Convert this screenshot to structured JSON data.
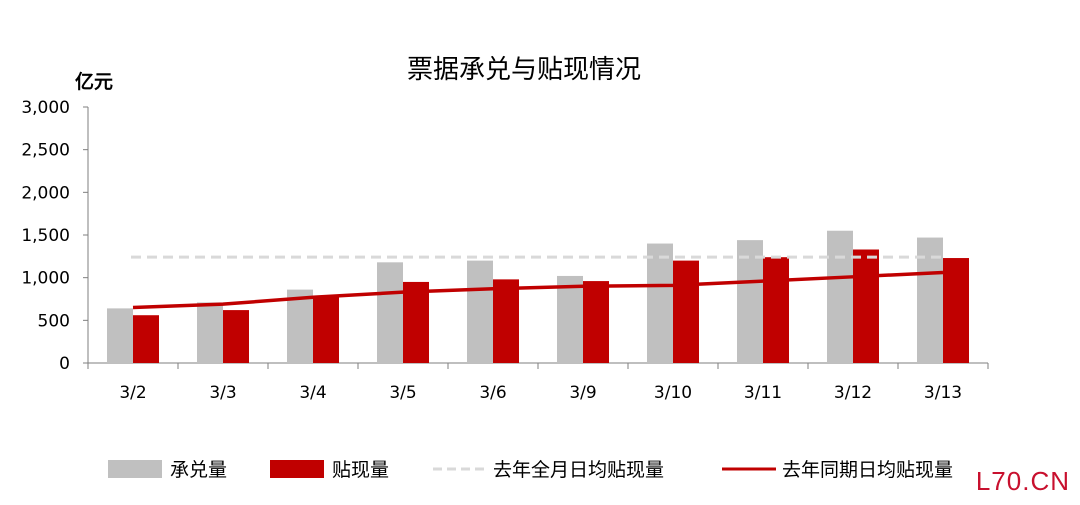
{
  "chart_data": {
    "type": "bar",
    "title": "票据承兑与贴现情况",
    "ylabel": "亿元",
    "xlabel": "",
    "categories": [
      "3/2",
      "3/3",
      "3/4",
      "3/5",
      "3/6",
      "3/9",
      "3/10",
      "3/11",
      "3/12",
      "3/13"
    ],
    "ylim": [
      0,
      3000
    ],
    "yticks": [
      "0",
      "500",
      "1,000",
      "1,500",
      "2,000",
      "2,500",
      "3,000"
    ],
    "grid": false,
    "legend_position": "bottom",
    "series": [
      {
        "name": "承兑量",
        "kind": "bar",
        "color": "#c0c0c0",
        "values": [
          640,
          710,
          860,
          1180,
          1200,
          1020,
          1400,
          1440,
          1550,
          1470
        ]
      },
      {
        "name": "贴现量",
        "kind": "bar",
        "color": "#c00000",
        "values": [
          560,
          620,
          790,
          950,
          980,
          960,
          1200,
          1240,
          1330,
          1230
        ]
      },
      {
        "name": "去年全月日均贴现量",
        "kind": "line-dashed",
        "color": "#d9d9d9",
        "values": [
          1240,
          1240,
          1240,
          1240,
          1240,
          1240,
          1240,
          1240,
          1240,
          1240
        ]
      },
      {
        "name": "去年同期日均贴现量",
        "kind": "line",
        "color": "#c00000",
        "values": [
          650,
          690,
          770,
          830,
          870,
          900,
          910,
          960,
          1010,
          1060
        ]
      }
    ]
  },
  "watermark": "L70.CN"
}
